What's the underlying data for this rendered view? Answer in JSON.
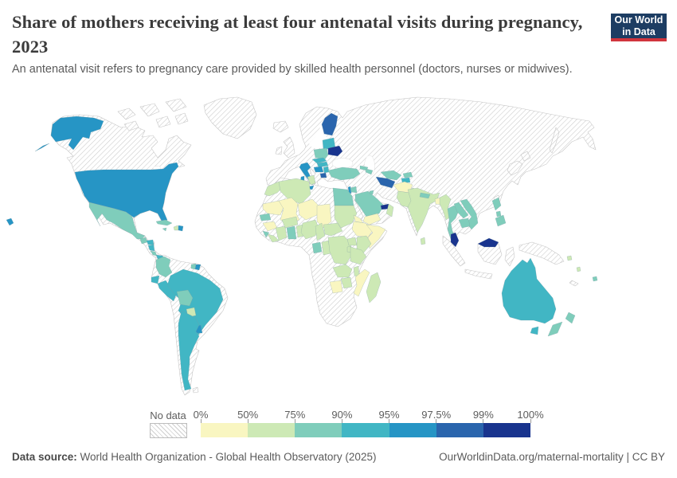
{
  "header": {
    "title": "Share of mothers receiving at least four antenatal visits during pregnancy, 2023",
    "subtitle": "An antenatal visit refers to pregnancy care provided by skilled health personnel (doctors, nurses or midwives).",
    "logo": {
      "line1": "Our World",
      "line2": "in Data",
      "bg_color": "#1d3d63",
      "bar_color": "#d1353d"
    }
  },
  "legend": {
    "no_data_label": "No data",
    "tick_labels": [
      "0%",
      "50%",
      "75%",
      "90%",
      "95%",
      "97.5%",
      "99%",
      "100%"
    ]
  },
  "footer": {
    "datasource_label": "Data source:",
    "datasource_text": " World Health Organization - Global Health Observatory (2025)",
    "link_text": "OurWorldinData.org/maternal-mortality | CC BY"
  },
  "chart_data": {
    "type": "choropleth",
    "title": "Share of mothers receiving at least four antenatal visits during pregnancy, 2023",
    "year": "2023",
    "unit": "% of mothers",
    "legend_position": "bottom",
    "no_data_pattern": "diagonal-hatch",
    "bins": [
      {
        "label": "0-50%",
        "color": "#f9f6c1"
      },
      {
        "label": "50-75%",
        "color": "#cde9b5"
      },
      {
        "label": "75-90%",
        "color": "#7fcdbb"
      },
      {
        "label": "90-95%",
        "color": "#41b6c4"
      },
      {
        "label": "95-97.5%",
        "color": "#2695c5"
      },
      {
        "label": "97.5-99%",
        "color": "#2a65ad"
      },
      {
        "label": "99-100%",
        "color": "#19348e"
      }
    ],
    "countries": {
      "United States": "95-97.5%",
      "Mexico": "75-90%",
      "Guatemala": "75-90%",
      "Honduras": "90-95%",
      "Nicaragua": "90-95%",
      "Costa Rica": "75-90%",
      "Panama": "90-95%",
      "Cuba": "75-90%",
      "Jamaica": "75-90%",
      "Haiti": "50-75%",
      "Dominican Republic": "95-97.5%",
      "Colombia": "75-90%",
      "Ecuador": "90-95%",
      "Peru": "90-95%",
      "Brazil": "90-95%",
      "Bolivia": "75-90%",
      "Paraguay": "50-75%",
      "Argentina": "90-95%",
      "Uruguay": "95-97.5%",
      "Suriname": "75-90%",
      "French Guiana": "95-97.5%",
      "Finland": "97.5-99%",
      "Baltic States": "90-95%",
      "Belarus": "99-100%",
      "Poland": "75-90%",
      "Czechia": "90-95%",
      "Hungary": "90-95%",
      "Croatia": "95-97.5%",
      "Serbia": "90-95%",
      "Albania": "97.5-99%",
      "Italy": "95-97.5%",
      "Turkey": "75-90%",
      "Georgia": "75-90%",
      "Azerbaijan": "75-90%",
      "Jordan": "75-90%",
      "Israel": "95-97.5%",
      "Saudi Arabia": "75-90%",
      "Kuwait": "75-90%",
      "United Arab Emirates": "99-100%",
      "Oman": "50-75%",
      "Yemen": "0-50%",
      "Egypt": "75-90%",
      "Morocco": "50-75%",
      "Algeria": "50-75%",
      "Tunisia": "50-75%",
      "Mauritania": "0-50%",
      "Mali": "0-50%",
      "Niger": "0-50%",
      "Chad": "0-50%",
      "Sudan": "50-75%",
      "Eritrea": "0-50%",
      "Ethiopia": "0-50%",
      "Somalia": "0-50%",
      "Senegal": "75-90%",
      "Guinea": "0-50%",
      "Sierra Leone": "75-90%",
      "Liberia": "50-75%",
      "Cote d'Ivoire": "50-75%",
      "Ghana": "75-90%",
      "Benin": "50-75%",
      "Burkina Faso": "50-75%",
      "Nigeria": "50-75%",
      "Cameroon": "50-75%",
      "Central African Republic": "50-75%",
      "Gabon": "75-90%",
      "Congo": "50-75%",
      "Democratic Republic of Congo": "50-75%",
      "Uganda": "50-75%",
      "Kenya": "50-75%",
      "Rwanda": "50-75%",
      "Tanzania": "50-75%",
      "Zambia": "50-75%",
      "Malawi": "50-75%",
      "Mozambique": "0-50%",
      "Zimbabwe": "50-75%",
      "Botswana": "0-50%",
      "Madagascar": "50-75%",
      "Uzbekistan": "75-90%",
      "Turkmenistan": "97.5-99%",
      "Kyrgyzstan": "75-90%",
      "Tajikistan": "90-95%",
      "Afghanistan": "0-50%",
      "Pakistan": "50-75%",
      "India": "50-75%",
      "Nepal": "75-90%",
      "Bangladesh": "0-50%",
      "Sri Lanka": "50-75%",
      "Myanmar": "50-75%",
      "Thailand": "75-90%",
      "Laos": "75-90%",
      "Vietnam": "75-90%",
      "Cambodia": "75-90%",
      "Malaysia": "99-100%",
      "Philippines": "75-90%",
      "Australia": "90-95%",
      "New Zealand": "75-90%",
      "Fiji": "75-90%",
      "Solomon Islands": "50-75%",
      "Vanuatu": "50-75%"
    },
    "no_data_regions": [
      "Canada",
      "Greenland",
      "Venezuela",
      "Guyana",
      "Chile",
      "Iceland",
      "United Kingdom",
      "Ireland",
      "France",
      "Spain",
      "Portugal",
      "Germany",
      "Norway",
      "Sweden",
      "Denmark",
      "Greece",
      "Romania",
      "Bulgaria",
      "Ukraine",
      "Russia",
      "Kazakhstan",
      "Iran",
      "Iraq",
      "Syria",
      "Libya",
      "Western Sahara",
      "South Sudan",
      "Angola",
      "Namibia",
      "South Africa",
      "China",
      "Mongolia",
      "Japan",
      "South Korea",
      "Indonesia",
      "Papua New Guinea",
      "New Caledonia"
    ]
  }
}
